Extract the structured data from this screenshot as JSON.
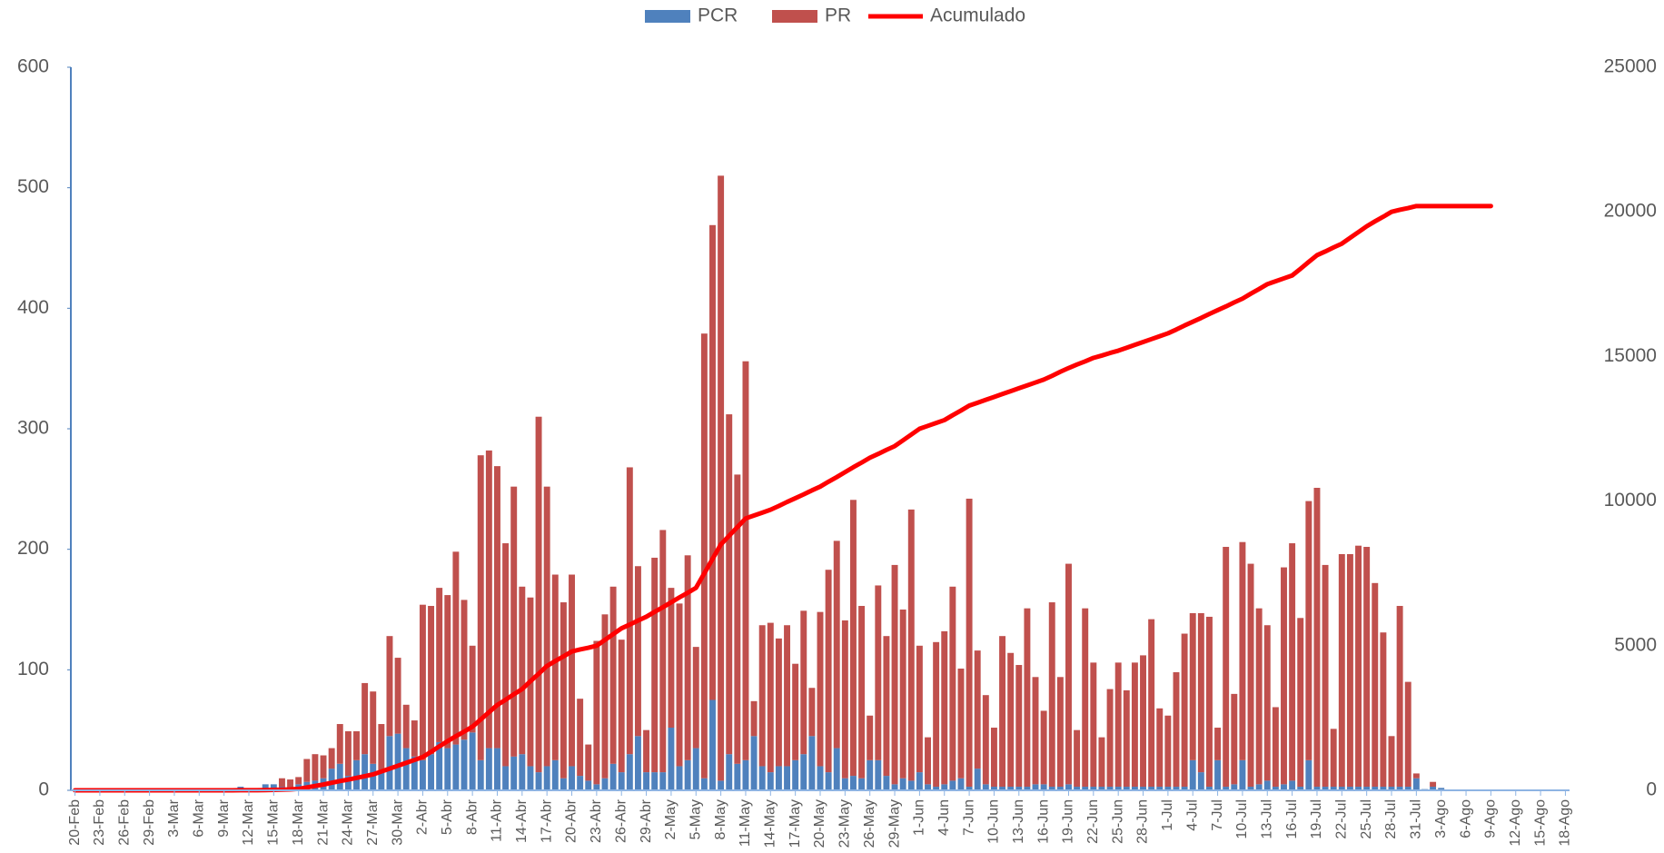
{
  "chart_data": {
    "type": "bar",
    "stacked": true,
    "categories": [
      "20-Feb",
      null,
      null,
      "23-Feb",
      null,
      null,
      "26-Feb",
      null,
      null,
      "29-Feb",
      null,
      null,
      "3-Mar",
      null,
      null,
      "6-Mar",
      null,
      null,
      "9-Mar",
      null,
      null,
      "12-Mar",
      null,
      null,
      "15-Mar",
      null,
      null,
      "18-Mar",
      null,
      null,
      "21-Mar",
      null,
      null,
      "24-Mar",
      null,
      null,
      "27-Mar",
      null,
      null,
      "30-Mar",
      null,
      null,
      "2-Abr",
      null,
      null,
      "5-Abr",
      null,
      null,
      "8-Abr",
      null,
      null,
      "11-Abr",
      null,
      null,
      "14-Abr",
      null,
      null,
      "17-Abr",
      null,
      null,
      "20-Abr",
      null,
      null,
      "23-Abr",
      null,
      null,
      "26-Abr",
      null,
      null,
      "29-Abr",
      null,
      null,
      "2-May",
      null,
      null,
      "5-May",
      null,
      null,
      "8-May",
      null,
      null,
      "11-May",
      null,
      null,
      "14-May",
      null,
      null,
      "17-May",
      null,
      null,
      "20-May",
      null,
      null,
      "23-May",
      null,
      null,
      "26-May",
      null,
      null,
      "29-May",
      null,
      null,
      "1-Jun",
      null,
      null,
      "4-Jun",
      null,
      null,
      "7-Jun",
      null,
      null,
      "10-Jun",
      null,
      null,
      "13-Jun",
      null,
      null,
      "16-Jun",
      null,
      null,
      "19-Jun",
      null,
      null,
      "22-Jun",
      null,
      null,
      "25-Jun",
      null,
      null,
      "28-Jun",
      null,
      null,
      "1-Jul",
      null,
      null,
      "4-Jul",
      null,
      null,
      "7-Jul",
      null,
      null,
      "10-Jul",
      null,
      null,
      "13-Jul",
      null,
      null,
      "16-Jul",
      null,
      null,
      "19-Jul",
      null,
      null,
      "22-Jul",
      null,
      null,
      "25-Jul",
      null,
      null,
      "28-Jul",
      null,
      null,
      "31-Jul",
      null,
      null,
      "3-Ago",
      null,
      null,
      "6-Ago",
      null,
      null,
      "9-Ago",
      null,
      null,
      "12-Ago",
      null,
      null,
      "15-Ago",
      null,
      null,
      "18-Ago"
    ],
    "series": [
      {
        "name": "PCR",
        "color": "#4f81bd",
        "type": "bar",
        "values": [
          0,
          0,
          0,
          0,
          0,
          0,
          0,
          0,
          0,
          0,
          0,
          0,
          0,
          0,
          0,
          0,
          0,
          0,
          0,
          0,
          3,
          1,
          0,
          5,
          5,
          3,
          2,
          5,
          7,
          8,
          10,
          18,
          22,
          12,
          25,
          30,
          22,
          15,
          45,
          47,
          35,
          28,
          25,
          30,
          40,
          35,
          38,
          42,
          48,
          25,
          35,
          35,
          20,
          28,
          30,
          20,
          15,
          20,
          25,
          10,
          20,
          12,
          8,
          5,
          10,
          22,
          15,
          30,
          45,
          15,
          15,
          15,
          52,
          20,
          25,
          35,
          10,
          75,
          8,
          30,
          22,
          25,
          45,
          20,
          15,
          20,
          20,
          25,
          30,
          45,
          20,
          15,
          35,
          10,
          12,
          10,
          25,
          25,
          12,
          5,
          10,
          8,
          15,
          5,
          3,
          5,
          8,
          10,
          3,
          18,
          5,
          3,
          3,
          3,
          3,
          3,
          5,
          5,
          3,
          3,
          5,
          3,
          3,
          3,
          3,
          3,
          3,
          3,
          3,
          3,
          3,
          3,
          3,
          3,
          3,
          25,
          15,
          3,
          25,
          3,
          5,
          25,
          3,
          5,
          8,
          3,
          5,
          8,
          3,
          25,
          3,
          3,
          3,
          3,
          3,
          3,
          3,
          3,
          3,
          3,
          3,
          3,
          10,
          1,
          3,
          2,
          0,
          0,
          0,
          0,
          0,
          0,
          0,
          0,
          0,
          0,
          0,
          0,
          0,
          0,
          0
        ]
      },
      {
        "name": "PR",
        "color": "#c0504d",
        "type": "bar",
        "values": [
          0,
          0,
          0,
          0,
          0,
          0,
          0,
          0,
          0,
          0,
          0,
          0,
          0,
          0,
          0,
          0,
          0,
          0,
          0,
          0,
          0,
          0,
          0,
          0,
          0,
          7,
          7,
          6,
          19,
          22,
          19,
          17,
          33,
          37,
          24,
          59,
          60,
          40,
          83,
          63,
          36,
          30,
          129,
          123,
          128,
          127,
          160,
          116,
          72,
          253,
          247,
          234,
          185,
          224,
          139,
          140,
          295,
          232,
          154,
          146,
          159,
          64,
          30,
          119,
          136,
          147,
          110,
          238,
          141,
          35,
          178,
          201,
          116,
          135,
          170,
          84,
          369,
          394,
          502,
          282,
          240,
          331,
          29,
          117,
          124,
          106,
          117,
          80,
          119,
          40,
          128,
          168,
          172,
          131,
          229,
          143,
          37,
          145,
          116,
          182,
          140,
          225,
          105,
          39,
          120,
          127,
          161,
          91,
          239,
          98,
          74,
          49,
          125,
          111,
          101,
          148,
          89,
          61,
          153,
          91,
          183,
          47,
          148,
          103,
          41,
          81,
          103,
          80,
          103,
          109,
          139,
          65,
          59,
          95,
          127,
          122,
          132,
          141,
          27,
          199,
          75,
          181,
          185,
          146,
          129,
          66,
          180,
          197,
          140,
          215,
          248,
          184,
          48,
          193,
          193,
          200,
          199,
          169,
          128,
          42,
          150,
          87,
          4,
          0,
          4,
          0,
          0,
          0,
          0,
          0,
          0,
          0,
          0,
          0,
          0,
          0,
          0,
          0,
          0,
          0,
          0
        ]
      },
      {
        "name": "Acumulado",
        "color": "#ff0000",
        "type": "line",
        "axis": "y2",
        "values": [
          0,
          0,
          0,
          0,
          0,
          0,
          0,
          0,
          0,
          0,
          0,
          0,
          0,
          0,
          0,
          0,
          0,
          0,
          0,
          0,
          3,
          4,
          4,
          9,
          14,
          24,
          33,
          50,
          100,
          150,
          200,
          260,
          320,
          370,
          430,
          490,
          550,
          650,
          750,
          850,
          950,
          1050,
          1150,
          1330,
          1520,
          1700,
          1870,
          2030,
          2200,
          2450,
          2700,
          2950,
          3130,
          3320,
          3500,
          3770,
          4030,
          4300,
          4470,
          4630,
          4800,
          4870,
          4930,
          5000,
          5200,
          5400,
          5600,
          5730,
          5870,
          6000,
          6170,
          6330,
          6500,
          6670,
          6830,
          7000,
          7500,
          8000,
          8500,
          8800,
          9100,
          9400,
          9500,
          9600,
          9700,
          9830,
          9970,
          10100,
          10230,
          10370,
          10500,
          10670,
          10830,
          11000,
          11170,
          11330,
          11500,
          11630,
          11770,
          11900,
          12100,
          12300,
          12500,
          12600,
          12700,
          12800,
          12970,
          13130,
          13300,
          13400,
          13500,
          13600,
          13700,
          13800,
          13900,
          14000,
          14100,
          14200,
          14330,
          14470,
          14600,
          14720,
          14830,
          14950,
          15030,
          15120,
          15200,
          15300,
          15400,
          15500,
          15600,
          15700,
          15800,
          15930,
          16070,
          16200,
          16330,
          16470,
          16600,
          16730,
          16870,
          17000,
          17170,
          17330,
          17500,
          17600,
          17700,
          17800,
          18030,
          18270,
          18500,
          18630,
          18770,
          18900,
          19100,
          19300,
          19500,
          19670,
          19830,
          20000,
          20070,
          20130,
          20200,
          20200,
          20200,
          20200,
          20200,
          20200,
          20200,
          20200,
          20200,
          20200,
          null,
          null,
          null,
          null,
          null,
          null,
          null,
          null,
          null
        ]
      }
    ],
    "ylim": [
      0,
      600
    ],
    "yticks": [
      0,
      100,
      200,
      300,
      400,
      500,
      600
    ],
    "y2lim": [
      0,
      25000
    ],
    "y2ticks": [
      0,
      5000,
      10000,
      15000,
      20000,
      25000
    ],
    "legend": "top",
    "grid": false
  }
}
